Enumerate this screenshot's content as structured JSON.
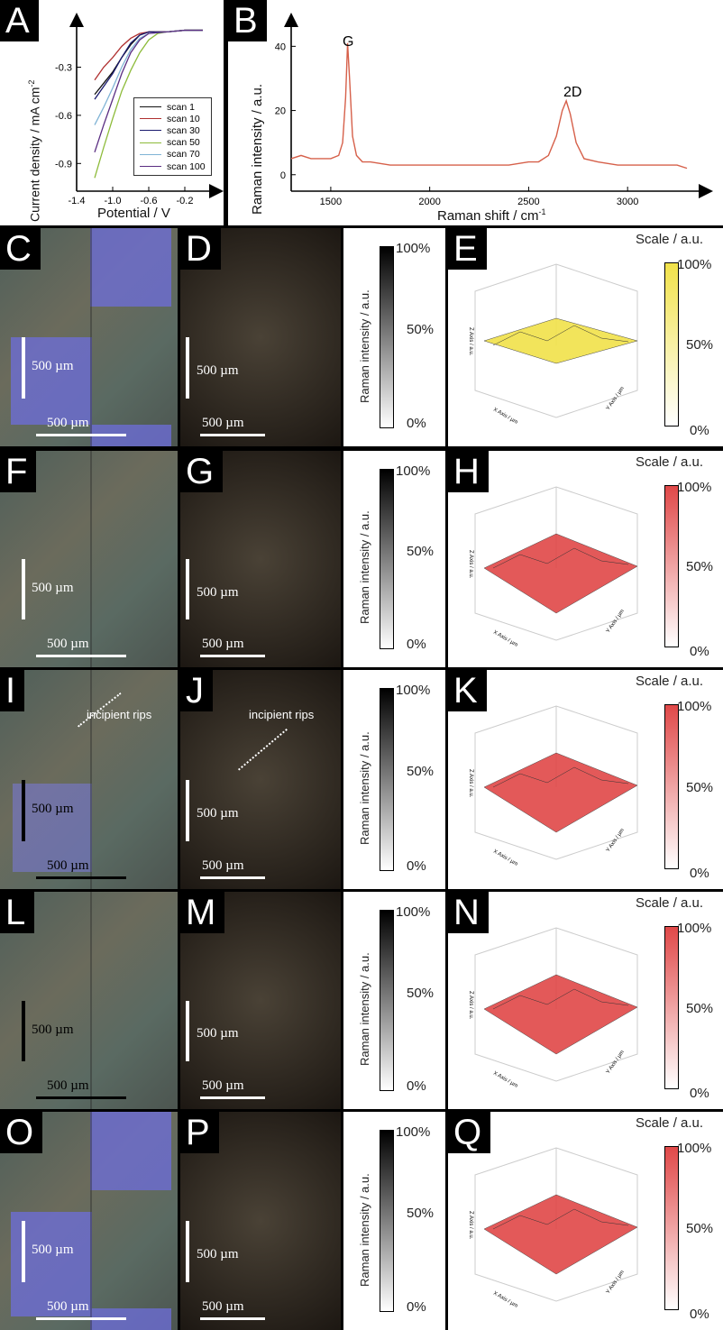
{
  "panel_a": {
    "tag": "A",
    "ylabel": "Current density / mA cm",
    "ylabel_sup": "-2",
    "xlabel": "Potential / V",
    "xticks": [
      "-1.4",
      "-1.0",
      "-0.6",
      "-0.2"
    ],
    "yticks": [
      "-0.3",
      "-0.6",
      "-0.9"
    ],
    "legend": [
      {
        "label": "scan 1",
        "color": "#111111"
      },
      {
        "label": "scan 10",
        "color": "#b03030"
      },
      {
        "label": "scan 30",
        "color": "#1a1a6e"
      },
      {
        "label": "scan 50",
        "color": "#8dbb3a"
      },
      {
        "label": "scan 70",
        "color": "#7fb3d5"
      },
      {
        "label": "scan 100",
        "color": "#5a2d82"
      }
    ]
  },
  "panel_b": {
    "tag": "B",
    "ylabel": "Raman intensity / a.u.",
    "xlabel": "Raman shift / cm",
    "xlabel_sup": "-1",
    "xticks": [
      "1500",
      "2000",
      "2500",
      "3000"
    ],
    "yticks": [
      "40",
      "20",
      "0"
    ],
    "peak_g": "G",
    "peak_2d": "2D",
    "color": "#d6604a"
  },
  "chart_data": [
    {
      "type": "line",
      "panel": "A",
      "xlabel": "Potential / V",
      "ylabel": "Current density / mA cm-2",
      "xlim": [
        -1.4,
        0.1
      ],
      "ylim": [
        -1.05,
        -0.05
      ],
      "series": [
        {
          "name": "scan 1",
          "x": [
            -1.2,
            -1.1,
            -1.0,
            -0.9,
            -0.8,
            -0.7,
            -0.6,
            -0.4,
            -0.2,
            0.0
          ],
          "y": [
            -0.47,
            -0.4,
            -0.33,
            -0.24,
            -0.16,
            -0.1,
            -0.08,
            -0.08,
            -0.07,
            -0.07
          ]
        },
        {
          "name": "scan 10",
          "x": [
            -1.2,
            -1.1,
            -1.0,
            -0.9,
            -0.8,
            -0.7,
            -0.6,
            -0.4,
            -0.2,
            0.0
          ],
          "y": [
            -0.38,
            -0.3,
            -0.24,
            -0.17,
            -0.12,
            -0.09,
            -0.08,
            -0.08,
            -0.07,
            -0.07
          ]
        },
        {
          "name": "scan 30",
          "x": [
            -1.2,
            -1.1,
            -1.0,
            -0.9,
            -0.8,
            -0.7,
            -0.6,
            -0.4,
            -0.2,
            0.0
          ],
          "y": [
            -0.5,
            -0.42,
            -0.34,
            -0.24,
            -0.15,
            -0.1,
            -0.08,
            -0.08,
            -0.07,
            -0.07
          ]
        },
        {
          "name": "scan 50",
          "x": [
            -1.2,
            -1.1,
            -1.0,
            -0.9,
            -0.8,
            -0.7,
            -0.6,
            -0.5,
            -0.4,
            -0.2,
            0.0
          ],
          "y": [
            -0.99,
            -0.8,
            -0.62,
            -0.45,
            -0.32,
            -0.21,
            -0.13,
            -0.09,
            -0.08,
            -0.07,
            -0.07
          ]
        },
        {
          "name": "scan 70",
          "x": [
            -1.2,
            -1.1,
            -1.0,
            -0.9,
            -0.8,
            -0.7,
            -0.6,
            -0.4,
            -0.2,
            0.0
          ],
          "y": [
            -0.66,
            -0.55,
            -0.43,
            -0.3,
            -0.19,
            -0.12,
            -0.09,
            -0.08,
            -0.07,
            -0.07
          ]
        },
        {
          "name": "scan 100",
          "x": [
            -1.2,
            -1.1,
            -1.0,
            -0.9,
            -0.8,
            -0.7,
            -0.6,
            -0.4,
            -0.2,
            0.0
          ],
          "y": [
            -0.83,
            -0.66,
            -0.5,
            -0.34,
            -0.21,
            -0.13,
            -0.09,
            -0.08,
            -0.07,
            -0.07
          ]
        }
      ]
    },
    {
      "type": "line",
      "panel": "B",
      "xlabel": "Raman shift / cm-1",
      "ylabel": "Raman intensity / a.u.",
      "xlim": [
        1300,
        3350
      ],
      "ylim": [
        -4,
        46
      ],
      "series": [
        {
          "x": [
            1300,
            1350,
            1400,
            1450,
            1500,
            1540,
            1560,
            1575,
            1585,
            1595,
            1610,
            1630,
            1660,
            1700,
            1800,
            1900,
            2000,
            2100,
            2200,
            2300,
            2400,
            2500,
            2550,
            2600,
            2640,
            2670,
            2690,
            2710,
            2740,
            2780,
            2850,
            2950,
            3050,
            3150,
            3250,
            3300
          ],
          "y": [
            5,
            6,
            5,
            5,
            5,
            6,
            10,
            24,
            41,
            30,
            12,
            6,
            4,
            4,
            3,
            3,
            3,
            3,
            3,
            3,
            3,
            4,
            4,
            6,
            12,
            20,
            23,
            19,
            10,
            5,
            4,
            3,
            3,
            3,
            3,
            2
          ]
        }
      ]
    }
  ],
  "rows": [
    {
      "tags": [
        "C",
        "D",
        "E"
      ],
      "optical_scale": "500 µm",
      "optical_scale_v": "500 µm",
      "map_scale": "500 µm",
      "map_scale_v": "500 µm",
      "cbar_title": "Raman intensity / a.u.",
      "cbar_top": "100%",
      "cbar_mid": "50%",
      "cbar_bot": "0%",
      "scale_title": "Scale / a.u.",
      "scale_top": "100%",
      "scale_mid": "50%",
      "scale_bot": "0%",
      "scale_color": "#f1e24a",
      "sb_color": "#ffffff"
    },
    {
      "tags": [
        "F",
        "G",
        "H"
      ],
      "optical_scale": "500 µm",
      "optical_scale_v": "500 µm",
      "map_scale": "500 µm",
      "map_scale_v": "500 µm",
      "cbar_title": "Raman intensity / a.u.",
      "cbar_top": "100%",
      "cbar_mid": "50%",
      "cbar_bot": "0%",
      "scale_title": "Scale / a.u.",
      "scale_top": "100%",
      "scale_mid": "50%",
      "scale_bot": "0%",
      "scale_color": "#e04848",
      "sb_color": "#ffffff"
    },
    {
      "tags": [
        "I",
        "J",
        "K"
      ],
      "optical_scale": "500 µm",
      "optical_scale_v": "500 µm",
      "map_scale": "500 µm",
      "map_scale_v": "500 µm",
      "cbar_title": "Raman intensity / a.u.",
      "cbar_top": "100%",
      "cbar_mid": "50%",
      "cbar_bot": "0%",
      "scale_title": "Scale / a.u.",
      "scale_top": "100%",
      "scale_mid": "50%",
      "scale_bot": "0%",
      "scale_color": "#e04848",
      "sb_color": "#000000",
      "annotation": "incipient rips"
    },
    {
      "tags": [
        "L",
        "M",
        "N"
      ],
      "optical_scale": "500 µm",
      "optical_scale_v": "500 µm",
      "map_scale": "500 µm",
      "map_scale_v": "500 µm",
      "cbar_title": "Raman intensity / a.u.",
      "cbar_top": "100%",
      "cbar_mid": "50%",
      "cbar_bot": "0%",
      "scale_title": "Scale / a.u.",
      "scale_top": "100%",
      "scale_mid": "50%",
      "scale_bot": "0%",
      "scale_color": "#e04848",
      "sb_color": "#000000"
    },
    {
      "tags": [
        "O",
        "P",
        "Q"
      ],
      "optical_scale": "500 µm",
      "optical_scale_v": "500 µm",
      "map_scale": "500 µm",
      "map_scale_v": "500 µm",
      "cbar_title": "Raman intensity / a.u.",
      "cbar_top": "100%",
      "cbar_mid": "50%",
      "cbar_bot": "0%",
      "scale_title": "Scale / a.u.",
      "scale_top": "100%",
      "scale_mid": "50%",
      "scale_bot": "0%",
      "scale_color": "#e04848",
      "sb_color": "#ffffff"
    }
  ],
  "plot3d_axis": {
    "z": "Z Axis / a.u.",
    "x": "X Axis / µm",
    "y": "Y Axis / µm"
  }
}
